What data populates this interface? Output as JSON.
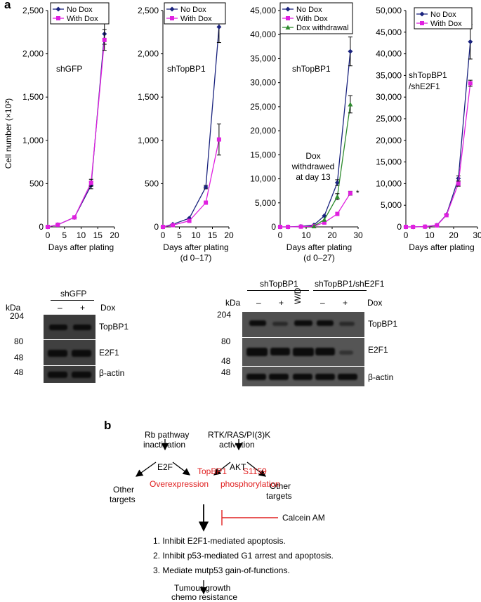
{
  "panel_a_label": "a",
  "panel_b_label": "b",
  "y_axis_shared_label": "Cell number (×10²)",
  "chart_data": [
    {
      "type": "line",
      "annotation": "shGFP",
      "xlabel": "Days after plating",
      "xlabel2": "",
      "xlim": [
        0,
        20
      ],
      "xticks": [
        0,
        5,
        10,
        15,
        20
      ],
      "ylim": [
        0,
        2500
      ],
      "yticks": [
        0,
        500,
        1000,
        1500,
        2000,
        2500
      ],
      "yticklabels": [
        "0",
        "500",
        "1,000",
        "1,500",
        "2,000",
        "2,500"
      ],
      "series": [
        {
          "name": "No Dox",
          "color": "#1a237e",
          "marker": "diamond",
          "x": [
            0,
            3,
            8,
            13,
            17
          ],
          "y": [
            0,
            25,
            110,
            480,
            2230
          ],
          "err": [
            0,
            0,
            0,
            40,
            120
          ]
        },
        {
          "name": "With Dox",
          "color": "#e020e0",
          "marker": "square",
          "x": [
            0,
            3,
            8,
            13,
            17
          ],
          "y": [
            0,
            25,
            110,
            510,
            2160
          ],
          "err": [
            0,
            0,
            0,
            40,
            120
          ]
        }
      ]
    },
    {
      "type": "line",
      "annotation": "shTopBP1",
      "xlabel": "Days after plating",
      "xlabel2": "(d 0–17)",
      "xlim": [
        0,
        20
      ],
      "xticks": [
        0,
        5,
        10,
        15,
        20
      ],
      "ylim": [
        0,
        2500
      ],
      "yticks": [
        0,
        500,
        1000,
        1500,
        2000,
        2500
      ],
      "yticklabels": [
        "0",
        "500",
        "1,000",
        "1,500",
        "2,000",
        "2,500"
      ],
      "series": [
        {
          "name": "No Dox",
          "color": "#1a237e",
          "marker": "diamond",
          "x": [
            0,
            3,
            8,
            13,
            17
          ],
          "y": [
            0,
            30,
            100,
            460,
            2310
          ],
          "err": [
            0,
            0,
            0,
            20,
            180
          ]
        },
        {
          "name": "With Dox",
          "color": "#e020e0",
          "marker": "square",
          "x": [
            0,
            3,
            8,
            13,
            17
          ],
          "y": [
            0,
            20,
            70,
            280,
            1010
          ],
          "err": [
            0,
            0,
            0,
            0,
            180
          ]
        }
      ]
    },
    {
      "type": "line",
      "annotation": "shTopBP1",
      "extra_annotation": [
        "Dox",
        "withdrawed",
        "at day 13"
      ],
      "star": "*",
      "xlabel": "Days after plating",
      "xlabel2": "(d 0–27)",
      "xlim": [
        0,
        30
      ],
      "xticks": [
        0,
        10,
        20,
        30
      ],
      "ylim": [
        0,
        45000
      ],
      "yticks": [
        0,
        5000,
        10000,
        15000,
        20000,
        25000,
        30000,
        35000,
        40000,
        45000
      ],
      "yticklabels": [
        "0",
        "5,000",
        "10,000",
        "15,000",
        "20,000",
        "25,000",
        "30,000",
        "35,000",
        "40,000",
        "45,000"
      ],
      "series": [
        {
          "name": "No Dox",
          "color": "#1a237e",
          "marker": "diamond",
          "x": [
            0,
            3,
            8,
            13,
            17,
            22,
            27
          ],
          "y": [
            0,
            0,
            100,
            400,
            2300,
            9200,
            36500
          ],
          "err": [
            0,
            0,
            0,
            0,
            0,
            600,
            3000
          ]
        },
        {
          "name": "With Dox",
          "color": "#e020e0",
          "marker": "square",
          "x": [
            0,
            3,
            8,
            13,
            17,
            22,
            27
          ],
          "y": [
            0,
            0,
            50,
            150,
            900,
            2700,
            7000
          ],
          "err": [
            0,
            0,
            0,
            0,
            0,
            0,
            400
          ]
        },
        {
          "name": "Dox withdrawal",
          "color": "#2e8b2e",
          "marker": "triangle",
          "x": [
            13,
            17,
            22,
            27
          ],
          "y": [
            150,
            1500,
            6300,
            25500
          ],
          "err": [
            0,
            0,
            600,
            1800
          ]
        }
      ]
    },
    {
      "type": "line",
      "annotation": "shTopBP1",
      "annotation2": "/shE2F1",
      "xlabel": "Days after plating",
      "xlabel2": "",
      "xlim": [
        0,
        30
      ],
      "xticks": [
        0,
        10,
        20,
        30
      ],
      "ylim": [
        0,
        50000
      ],
      "yticks": [
        0,
        5000,
        10000,
        15000,
        20000,
        25000,
        30000,
        35000,
        40000,
        45000,
        50000
      ],
      "yticklabels": [
        "0",
        "5,000",
        "10,000",
        "15,000",
        "20,000",
        "25,000",
        "30,000",
        "35,000",
        "40,000",
        "45,000",
        "50,000"
      ],
      "series": [
        {
          "name": "No Dox",
          "color": "#1a237e",
          "marker": "diamond",
          "x": [
            0,
            3,
            8,
            13,
            17,
            22,
            27
          ],
          "y": [
            0,
            0,
            50,
            400,
            2800,
            11200,
            42800
          ],
          "err": [
            0,
            0,
            0,
            0,
            0,
            600,
            4000
          ]
        },
        {
          "name": "With Dox",
          "color": "#e020e0",
          "marker": "square",
          "x": [
            0,
            3,
            8,
            13,
            17,
            22,
            27
          ],
          "y": [
            0,
            0,
            50,
            350,
            2700,
            10000,
            33200
          ],
          "err": [
            0,
            0,
            0,
            0,
            0,
            600,
            700
          ]
        }
      ]
    }
  ],
  "blot_left": {
    "group": "shGFP",
    "kda": "kDa",
    "lanes": [
      "–",
      "+"
    ],
    "dox": "Dox",
    "markers": [
      "204",
      "80",
      "48",
      "48"
    ],
    "rows": [
      "TopBP1",
      "E2F1",
      "β-actin"
    ]
  },
  "blot_right": {
    "group1": "shTopBP1",
    "group2": "shTopBP1/shE2F1",
    "kda": "kDa",
    "lanes": [
      "–",
      "+",
      "W/D",
      "–",
      "+"
    ],
    "dox": "Dox",
    "markers": [
      "204",
      "80",
      "48",
      "48"
    ],
    "rows": [
      "TopBP1",
      "E2F1",
      "β-actin"
    ]
  },
  "pathway": {
    "rb_line1": "Rb pathway",
    "rb_line2": "inactivation",
    "e2f": "E2F",
    "rtk_line1": "RTK/RAS/PI(3)K",
    "rtk_line2": "activation",
    "akt": "AKT",
    "other_left_1": "Other",
    "other_left_2": "targets",
    "other_right_1": "Other",
    "other_right_2": "targets",
    "topbp1": "TopBP1",
    "overexpression": "Overexpression",
    "s1159": "S1159",
    "phosphorylation": "phosphorylation",
    "inhibitor": "Calcein AM",
    "outcomes": [
      "1. Inhibit E2F1-mediated apoptosis.",
      "2. Inhibit p53-mediated G1 arrest and apoptosis.",
      "3. Mediate mutp53 gain-of-functions."
    ],
    "final_line1": "Tumour growth",
    "final_line2": "chemo resistance",
    "red": "#e02020"
  }
}
